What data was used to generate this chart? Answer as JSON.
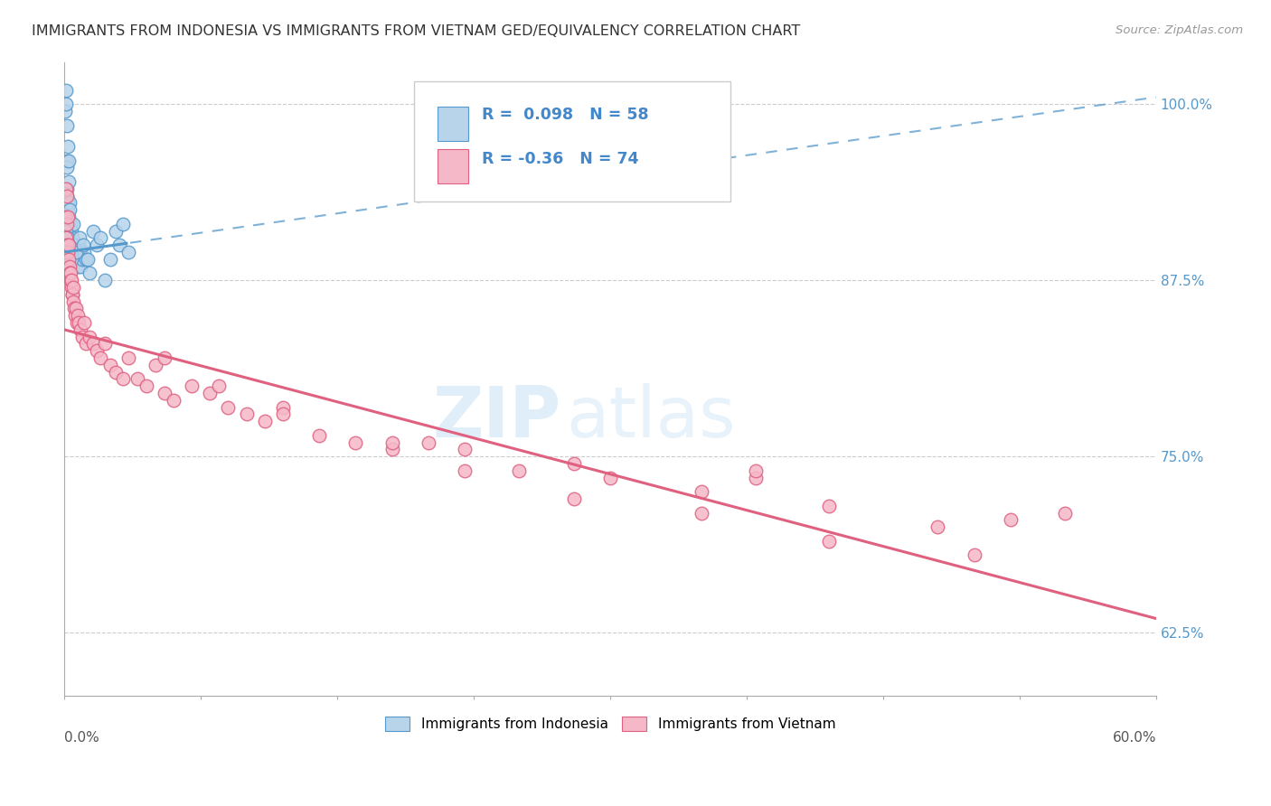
{
  "title": "IMMIGRANTS FROM INDONESIA VS IMMIGRANTS FROM VIETNAM GED/EQUIVALENCY CORRELATION CHART",
  "source": "Source: ZipAtlas.com",
  "ylabel": "GED/Equivalency",
  "yticks": [
    62.5,
    75.0,
    87.5,
    100.0
  ],
  "ytick_labels": [
    "62.5%",
    "75.0%",
    "87.5%",
    "100.0%"
  ],
  "xmin": 0.0,
  "xmax": 60.0,
  "ymin": 58.0,
  "ymax": 103.0,
  "legend_label1": "Immigrants from Indonesia",
  "legend_label2": "Immigrants from Vietnam",
  "R1": 0.098,
  "N1": 58,
  "R2": -0.36,
  "N2": 74,
  "color1": "#b8d4ea",
  "color2": "#f5b8c8",
  "line_color1": "#5599cc",
  "line_color2": "#e06080",
  "watermark_zip": "ZIP",
  "watermark_atlas": "atlas",
  "indo_line_x0": 0.0,
  "indo_line_y0": 89.5,
  "indo_line_x1": 60.0,
  "indo_line_y1": 100.5,
  "viet_line_x0": 0.0,
  "viet_line_y0": 84.0,
  "viet_line_x1": 60.0,
  "viet_line_y1": 63.5,
  "indo_solid_end": 3.5,
  "indonesia_x": [
    0.05,
    0.08,
    0.1,
    0.12,
    0.12,
    0.14,
    0.15,
    0.15,
    0.17,
    0.18,
    0.2,
    0.2,
    0.22,
    0.22,
    0.24,
    0.25,
    0.25,
    0.27,
    0.28,
    0.3,
    0.3,
    0.32,
    0.35,
    0.38,
    0.4,
    0.42,
    0.45,
    0.48,
    0.5,
    0.55,
    0.6,
    0.65,
    0.7,
    0.75,
    0.8,
    0.9,
    1.0,
    1.1,
    1.2,
    1.4,
    1.6,
    1.8,
    2.0,
    2.2,
    2.5,
    2.8,
    3.0,
    3.2,
    3.5,
    0.1,
    0.18,
    0.28,
    0.38,
    0.5,
    0.65,
    0.85,
    1.05,
    1.3
  ],
  "indonesia_y": [
    99.5,
    101.0,
    100.0,
    96.0,
    98.5,
    93.5,
    94.0,
    95.5,
    92.5,
    91.0,
    93.0,
    97.0,
    91.5,
    96.0,
    92.0,
    91.0,
    94.5,
    90.5,
    93.0,
    91.0,
    92.5,
    90.5,
    91.5,
    90.0,
    91.0,
    90.5,
    90.0,
    91.5,
    90.0,
    89.5,
    89.0,
    89.5,
    89.0,
    88.5,
    90.0,
    88.5,
    89.0,
    89.5,
    89.0,
    88.0,
    91.0,
    90.0,
    90.5,
    87.5,
    89.0,
    91.0,
    90.0,
    91.5,
    89.5,
    91.0,
    90.5,
    88.0,
    89.0,
    90.0,
    89.5,
    90.5,
    90.0,
    89.0
  ],
  "vietnam_x": [
    0.05,
    0.07,
    0.1,
    0.12,
    0.14,
    0.15,
    0.17,
    0.2,
    0.22,
    0.25,
    0.28,
    0.3,
    0.32,
    0.35,
    0.38,
    0.4,
    0.42,
    0.45,
    0.48,
    0.5,
    0.55,
    0.6,
    0.65,
    0.7,
    0.75,
    0.8,
    0.9,
    1.0,
    1.1,
    1.2,
    1.4,
    1.6,
    1.8,
    2.0,
    2.2,
    2.5,
    2.8,
    3.2,
    3.5,
    4.0,
    4.5,
    5.0,
    5.5,
    6.0,
    7.0,
    8.0,
    9.0,
    10.0,
    11.0,
    12.0,
    14.0,
    16.0,
    18.0,
    20.0,
    22.0,
    25.0,
    28.0,
    30.0,
    35.0,
    38.0,
    42.0,
    48.0,
    52.0,
    55.0,
    5.5,
    8.5,
    12.0,
    18.0,
    22.0,
    28.0,
    35.0,
    42.0,
    50.0,
    38.0
  ],
  "vietnam_y": [
    92.0,
    90.5,
    94.0,
    91.5,
    90.0,
    93.5,
    89.5,
    92.0,
    89.0,
    90.0,
    88.5,
    88.0,
    87.5,
    88.0,
    87.0,
    87.5,
    86.5,
    86.5,
    87.0,
    86.0,
    85.5,
    85.0,
    85.5,
    84.5,
    85.0,
    84.5,
    84.0,
    83.5,
    84.5,
    83.0,
    83.5,
    83.0,
    82.5,
    82.0,
    83.0,
    81.5,
    81.0,
    80.5,
    82.0,
    80.5,
    80.0,
    81.5,
    79.5,
    79.0,
    80.0,
    79.5,
    78.5,
    78.0,
    77.5,
    78.5,
    76.5,
    76.0,
    75.5,
    76.0,
    75.5,
    74.0,
    74.5,
    73.5,
    72.5,
    73.5,
    71.5,
    70.0,
    70.5,
    71.0,
    82.0,
    80.0,
    78.0,
    76.0,
    74.0,
    72.0,
    71.0,
    69.0,
    68.0,
    74.0
  ]
}
